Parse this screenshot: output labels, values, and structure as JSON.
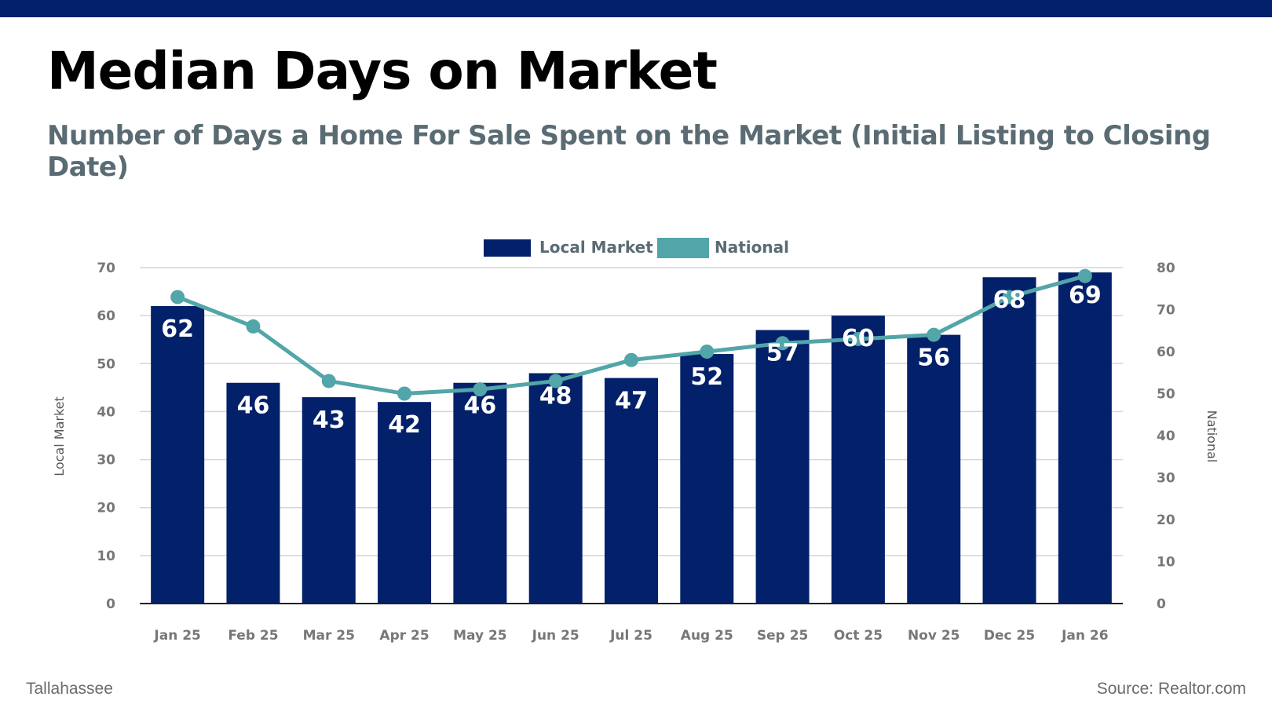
{
  "header": {
    "title": "Median Days on Market",
    "subtitle": "Number of Days a Home For Sale Spent on the Market (Initial Listing to Closing Date)"
  },
  "footer": {
    "location": "Tallahassee",
    "source": "Source: Realtor.com"
  },
  "colors": {
    "local": "#03206a",
    "national": "#52a5a8",
    "topbar": "#03206a"
  },
  "chart_data": {
    "type": "bar",
    "title": "Median Days on Market",
    "categories": [
      "Jan 25",
      "Feb 25",
      "Mar 25",
      "Apr 25",
      "May 25",
      "Jun 25",
      "Jul 25",
      "Aug 25",
      "Sep 25",
      "Oct 25",
      "Nov 25",
      "Dec 25",
      "Jan 26"
    ],
    "series": [
      {
        "name": "Local Market",
        "type": "bar",
        "axis": "left",
        "values": [
          62,
          46,
          43,
          42,
          46,
          48,
          47,
          52,
          57,
          60,
          56,
          68,
          69
        ]
      },
      {
        "name": "National",
        "type": "line",
        "axis": "right",
        "values": [
          73,
          66,
          53,
          50,
          51,
          53,
          58,
          60,
          62,
          63,
          64,
          73,
          78
        ]
      }
    ],
    "ylabel": "Local Market",
    "y2label": "National",
    "ylim": [
      0,
      70
    ],
    "y2lim": [
      0,
      80
    ],
    "yticks": [
      "0",
      "10",
      "20",
      "30",
      "40",
      "50",
      "60",
      "70"
    ],
    "y2ticks": [
      "0",
      "10",
      "20",
      "30",
      "40",
      "50",
      "60",
      "70",
      "80"
    ],
    "grid": true,
    "legend": "top-center"
  }
}
